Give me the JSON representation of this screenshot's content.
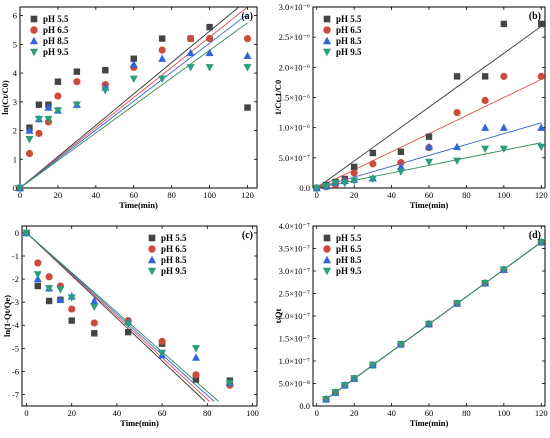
{
  "figure": {
    "series_styles": [
      {
        "color": "#444444",
        "marker": "square"
      },
      {
        "color": "#cc4b3a",
        "marker": "circle"
      },
      {
        "color": "#2f66d9",
        "marker": "triangle-up"
      },
      {
        "color": "#2a9e7f",
        "marker": "triangle-down"
      }
    ],
    "fit_colors": [
      "#333333",
      "#d9534f",
      "#3366cc",
      "#2e8b57"
    ]
  },
  "chart_data": [
    {
      "panel": "(a)",
      "type": "scatter",
      "xlabel": "Time(min)",
      "ylabel": "ln(Ct/C0)",
      "xlim": [
        0,
        125
      ],
      "ylim": [
        0,
        6.3
      ],
      "xticks": [
        0,
        20,
        40,
        60,
        80,
        100,
        120
      ],
      "yticks": [
        0,
        1,
        2,
        3,
        4,
        5,
        6
      ],
      "ytick_labels": [
        "0",
        "1",
        "2",
        "3",
        "4",
        "5",
        "6"
      ],
      "legend_position": "top-left",
      "series": [
        {
          "name": "pH 5.5",
          "x": [
            0,
            5,
            10,
            15,
            20,
            30,
            45,
            60,
            75,
            90,
            100,
            120
          ],
          "y": [
            0,
            2.1,
            2.9,
            2.9,
            3.7,
            4.05,
            4.1,
            4.5,
            5.2,
            5.2,
            5.6,
            2.8
          ]
        },
        {
          "name": "pH 6.5",
          "x": [
            0,
            5,
            10,
            15,
            20,
            30,
            45,
            60,
            75,
            90,
            100,
            120
          ],
          "y": [
            0,
            1.2,
            1.9,
            2.3,
            3.2,
            3.7,
            3.6,
            4.2,
            4.8,
            5.2,
            5.2,
            5.2
          ]
        },
        {
          "name": "pH 8.5",
          "x": [
            0,
            5,
            10,
            15,
            20,
            30,
            45,
            60,
            75,
            90,
            100,
            120
          ],
          "y": [
            0,
            2.0,
            2.4,
            2.8,
            2.7,
            2.9,
            3.5,
            4.3,
            4.5,
            4.7,
            4.7,
            4.6
          ]
        },
        {
          "name": "pH 9.5",
          "x": [
            0,
            5,
            10,
            15,
            20,
            30,
            45,
            60,
            75,
            90,
            100,
            120
          ],
          "y": [
            0,
            1.7,
            2.4,
            2.4,
            2.7,
            2.9,
            3.4,
            3.8,
            3.8,
            4.2,
            4.2,
            4.2
          ]
        }
      ],
      "fit_lines": [
        {
          "x": [
            0,
            120
          ],
          "y": [
            0,
            6.55
          ]
        },
        {
          "x": [
            0,
            120
          ],
          "y": [
            0,
            6.3
          ]
        },
        {
          "x": [
            0,
            120
          ],
          "y": [
            0,
            6.05
          ]
        },
        {
          "x": [
            0,
            120
          ],
          "y": [
            0,
            5.75
          ]
        }
      ]
    },
    {
      "panel": "(b)",
      "type": "scatter",
      "xlabel": "Time(min)",
      "ylabel": "1/Ct-1/C0",
      "xlim": [
        -2,
        122
      ],
      "ylim": [
        0,
        3e-06
      ],
      "xticks": [
        0,
        20,
        40,
        60,
        80,
        100,
        120
      ],
      "yticks": [
        0,
        5e-07,
        1e-06,
        1.5e-06,
        2e-06,
        2.5e-06,
        3e-06
      ],
      "ytick_labels": [
        "0.0",
        "5.0×10⁻⁷",
        "1.0×10⁻⁶",
        "1.5×10⁻⁶",
        "2.0×10⁻⁶",
        "2.5×10⁻⁶",
        "3.0×10⁻⁶"
      ],
      "legend_position": "top-left",
      "series": [
        {
          "name": "pH 5.5",
          "x": [
            0,
            5,
            10,
            15,
            20,
            30,
            45,
            60,
            75,
            90,
            100,
            120
          ],
          "y": [
            0,
            5e-08,
            1e-07,
            1.5e-07,
            3.5e-07,
            5.8e-07,
            6e-07,
            8.5e-07,
            1.85e-06,
            1.85e-06,
            2.72e-06,
            2.72e-06
          ]
        },
        {
          "name": "pH 6.5",
          "x": [
            0,
            5,
            10,
            15,
            20,
            30,
            45,
            60,
            75,
            90,
            100,
            120
          ],
          "y": [
            0,
            2e-08,
            6e-08,
            1.2e-07,
            2.5e-07,
            4e-07,
            4.2e-07,
            6.7e-07,
            1.25e-06,
            1.45e-06,
            1.85e-06,
            1.85e-06
          ]
        },
        {
          "name": "pH 8.5",
          "x": [
            0,
            5,
            10,
            15,
            20,
            30,
            45,
            60,
            75,
            90,
            100,
            120
          ],
          "y": [
            0,
            3e-08,
            9e-08,
            1.2e-07,
            1.4e-07,
            1.6e-07,
            3.5e-07,
            6.8e-07,
            6.8e-07,
            1e-06,
            1e-06,
            1e-06
          ]
        },
        {
          "name": "pH 9.5",
          "x": [
            0,
            5,
            10,
            15,
            20,
            30,
            45,
            60,
            75,
            90,
            100,
            120
          ],
          "y": [
            0,
            3e-08,
            8e-08,
            8e-08,
            1.2e-07,
            1.5e-07,
            2.7e-07,
            4.3e-07,
            4.5e-07,
            6.5e-07,
            6.5e-07,
            6.8e-07
          ]
        }
      ],
      "fit_lines": [
        {
          "x": [
            0,
            120
          ],
          "y": [
            0,
            2.68e-06
          ]
        },
        {
          "x": [
            0,
            120
          ],
          "y": [
            0,
            1.8e-06
          ]
        },
        {
          "x": [
            0,
            120
          ],
          "y": [
            0,
            1.08e-06
          ]
        },
        {
          "x": [
            0,
            120
          ],
          "y": [
            0,
            7.5e-07
          ]
        }
      ]
    },
    {
      "panel": "(c)",
      "type": "scatter",
      "xlabel": "Time(min)",
      "ylabel": "ln(1-Qt/Qe)",
      "xlim": [
        -2,
        102
      ],
      "ylim": [
        -7.5,
        0.3
      ],
      "xticks": [
        0,
        20,
        40,
        60,
        80,
        100
      ],
      "yticks": [
        0,
        -1,
        -2,
        -3,
        -4,
        -5,
        -6,
        -7
      ],
      "ytick_labels": [
        "0",
        "-1",
        "-2",
        "-3",
        "-4",
        "-5",
        "-6",
        "-7"
      ],
      "legend_position": "top-right",
      "series": [
        {
          "name": "pH 5.5",
          "x": [
            0,
            5,
            10,
            15,
            20,
            30,
            45,
            60,
            75,
            90
          ],
          "y": [
            0,
            -2.3,
            -2.95,
            -2.9,
            -3.8,
            -4.35,
            -4.3,
            -4.8,
            -6.35,
            -6.4
          ]
        },
        {
          "name": "pH 6.5",
          "x": [
            0,
            5,
            10,
            15,
            20,
            30,
            45,
            60,
            75,
            90
          ],
          "y": [
            0,
            -1.3,
            -1.9,
            -2.3,
            -3.3,
            -3.9,
            -3.8,
            -4.7,
            -6.15,
            -6.6
          ]
        },
        {
          "name": "pH 8.5",
          "x": [
            0,
            5,
            10,
            15,
            20,
            30,
            45,
            60,
            75,
            90
          ],
          "y": [
            0,
            -2.0,
            -2.4,
            -2.9,
            -2.75,
            -2.95,
            -3.85,
            -5.3,
            -5.4,
            -6.5
          ]
        },
        {
          "name": "pH 9.5",
          "x": [
            0,
            5,
            10,
            15,
            20,
            30,
            45,
            60,
            75,
            90
          ],
          "y": [
            0,
            -1.8,
            -2.4,
            -2.45,
            -2.8,
            -3.2,
            -3.95,
            -5.2,
            -5,
            -6.5
          ]
        }
      ],
      "fit_lines": [
        {
          "x": [
            0,
            79
          ],
          "y": [
            0,
            -7.3
          ]
        },
        {
          "x": [
            0,
            81
          ],
          "y": [
            0,
            -7.3
          ]
        },
        {
          "x": [
            0,
            83
          ],
          "y": [
            0,
            -7.3
          ]
        },
        {
          "x": [
            0,
            85
          ],
          "y": [
            0,
            -7.3
          ]
        }
      ]
    },
    {
      "panel": "(d)",
      "type": "scatter",
      "xlabel": "Time(min)",
      "ylabel": "t/Qt",
      "xlim": [
        -2,
        122
      ],
      "ylim": [
        0,
        4e-07
      ],
      "xticks": [
        0,
        20,
        40,
        60,
        80,
        100,
        120
      ],
      "yticks": [
        0,
        5e-08,
        1e-07,
        1.5e-07,
        2e-07,
        2.5e-07,
        3e-07,
        3.5e-07,
        4e-07
      ],
      "ytick_labels": [
        "0.0",
        "5.0×10⁻⁸",
        "1.0×10⁻⁷",
        "1.5×10⁻⁷",
        "2.0×10⁻⁷",
        "2.5×10⁻⁷",
        "3.0×10⁻⁷",
        "3.5×10⁻⁷",
        "4.0×10⁻⁷"
      ],
      "legend_position": "top-left",
      "series": [
        {
          "name": "pH 5.5",
          "x": [
            5,
            10,
            15,
            20,
            30,
            45,
            60,
            75,
            90,
            100,
            120
          ],
          "y": [
            1.5e-08,
            3e-08,
            4.6e-08,
            6.1e-08,
            9.1e-08,
            1.37e-07,
            1.82e-07,
            2.28e-07,
            2.73e-07,
            3.03e-07,
            3.64e-07
          ]
        },
        {
          "name": "pH 6.5",
          "x": [
            5,
            10,
            15,
            20,
            30,
            45,
            60,
            75,
            90,
            100,
            120
          ],
          "y": [
            1.5e-08,
            3e-08,
            4.6e-08,
            6.1e-08,
            9.1e-08,
            1.37e-07,
            1.82e-07,
            2.28e-07,
            2.73e-07,
            3.03e-07,
            3.64e-07
          ]
        },
        {
          "name": "pH 8.5",
          "x": [
            5,
            10,
            15,
            20,
            30,
            45,
            60,
            75,
            90,
            100,
            120
          ],
          "y": [
            1.5e-08,
            3e-08,
            4.6e-08,
            6.1e-08,
            9.1e-08,
            1.37e-07,
            1.82e-07,
            2.28e-07,
            2.73e-07,
            3.03e-07,
            3.64e-07
          ]
        },
        {
          "name": "pH 9.5",
          "x": [
            5,
            10,
            15,
            20,
            30,
            45,
            60,
            75,
            90,
            100,
            120
          ],
          "y": [
            1.5e-08,
            3e-08,
            4.6e-08,
            6.1e-08,
            9.1e-08,
            1.37e-07,
            1.82e-07,
            2.28e-07,
            2.73e-07,
            3.03e-07,
            3.64e-07
          ]
        }
      ],
      "fit_lines": [
        {
          "x": [
            5,
            120
          ],
          "y": [
            1.5e-08,
            3.64e-07
          ]
        },
        {
          "x": [
            5,
            120
          ],
          "y": [
            1.5e-08,
            3.64e-07
          ]
        },
        {
          "x": [
            5,
            120
          ],
          "y": [
            1.5e-08,
            3.64e-07
          ]
        },
        {
          "x": [
            5,
            120
          ],
          "y": [
            1.5e-08,
            3.64e-07
          ]
        }
      ]
    }
  ]
}
